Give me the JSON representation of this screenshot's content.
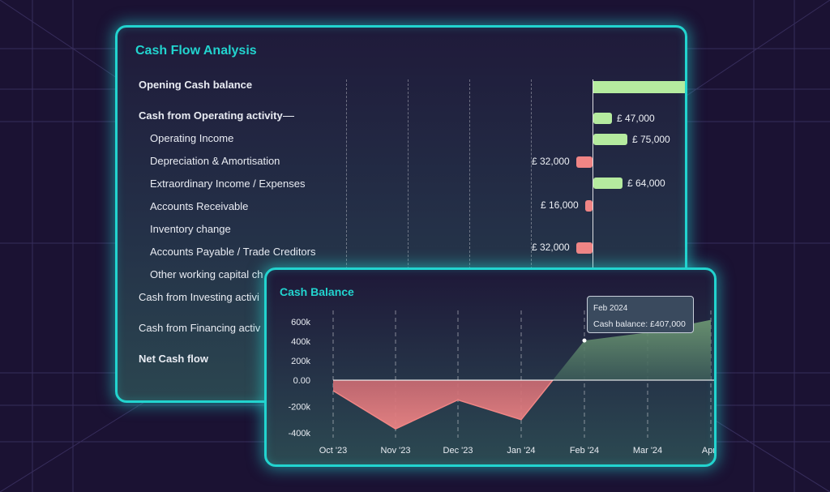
{
  "cash_flow": {
    "title": "Cash Flow Analysis",
    "rows": [
      {
        "label": "Opening Cash balance"
      },
      {
        "label": "Cash from Operating activity"
      },
      {
        "label": "Operating Income"
      },
      {
        "label": "Depreciation & Amortisation"
      },
      {
        "label": "Extraordinary Income / Expenses"
      },
      {
        "label": "Accounts Receivable"
      },
      {
        "label": "Inventory change"
      },
      {
        "label": "Accounts Payable / Trade Creditors"
      },
      {
        "label": "Other working capital ch"
      },
      {
        "label": "Cash from Investing activi"
      },
      {
        "label": "Cash from Financing activ"
      },
      {
        "label": "Net Cash flow"
      }
    ],
    "bar_labels": {
      "operating": "£ 47,000",
      "operating_income": "£ 75,000",
      "depreciation": "£ 32,000",
      "extraordinary": "£ 64,000",
      "receivable": "£ 16,000",
      "payable": "£ 32,000"
    },
    "colors": {
      "positive": "#b5eb9f",
      "negative": "#f08585",
      "accent": "#22d4cf"
    }
  },
  "cash_balance": {
    "title": "Cash Balance",
    "tooltip": {
      "date": "Feb 2024",
      "text": "Cash balance: £407,000"
    }
  },
  "chart_data": [
    {
      "type": "bar",
      "title": "Cash Flow Analysis",
      "categories": [
        "Opening Cash balance",
        "Cash from Operating activity",
        "Operating Income",
        "Depreciation & Amortisation",
        "Extraordinary Income / Expenses",
        "Accounts Receivable",
        "Inventory change",
        "Accounts Payable / Trade Creditors"
      ],
      "values": [
        null,
        47000,
        75000,
        -32000,
        64000,
        -16000,
        0,
        -32000
      ],
      "orientation": "horizontal"
    },
    {
      "type": "area",
      "title": "Cash Balance",
      "x": [
        "Oct '23",
        "Nov '23",
        "Dec '23",
        "Jan '24",
        "Feb '24",
        "Mar '24",
        "Apr '"
      ],
      "values": [
        -80000,
        -370000,
        -150000,
        -300000,
        407000,
        490000,
        620000
      ],
      "y_ticks": [
        "600k",
        "400k",
        "200k",
        "0.00",
        "-200k",
        "-400k"
      ],
      "ylim": [
        -400000,
        600000
      ],
      "grid": "vertical-dashed",
      "colors": {
        "positive": "#6f9a74",
        "negative": "#f08585"
      }
    }
  ]
}
